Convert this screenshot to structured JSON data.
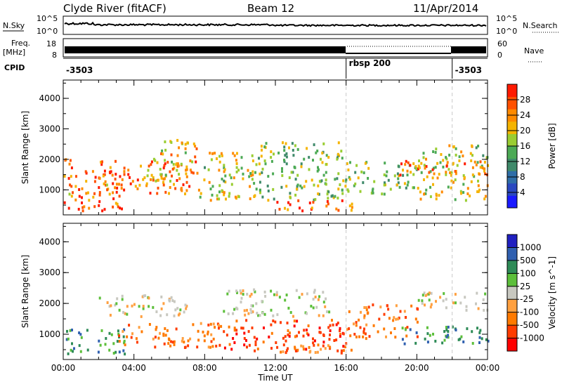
{
  "header": {
    "station": "Clyde River (fitACF)",
    "beam": "Beam 12",
    "date": "11/Apr/2014"
  },
  "strip": {
    "nsky_label": "N.Sky",
    "nsky_ticks": [
      "10^5",
      "10^0"
    ],
    "nsearch_label": "N.Search",
    "freq_label": "Freq.",
    "freq_unit": "[MHz]",
    "freq_ticks": [
      "18",
      "8"
    ],
    "nave_ticks": [
      "60",
      "0"
    ],
    "nave_label": "Nave",
    "cpid_label": "CPID",
    "cpid_segments": [
      {
        "label": "-3503",
        "start": 0,
        "end": 16
      },
      {
        "label": "rbsp 200",
        "start": 16,
        "end": 22
      },
      {
        "label": "-3503",
        "start": 22,
        "end": 24
      }
    ]
  },
  "chart_data": [
    {
      "type": "heatmap",
      "quantity": "Power",
      "x_ticks": [
        "00:00",
        "04:00",
        "08:00",
        "12:00",
        "16:00",
        "20:00",
        "00:00"
      ],
      "xlim": [
        0,
        24
      ],
      "ylabel": "Slant Range [km]",
      "y_ticks": [
        "1000",
        "2000",
        "3000",
        "4000"
      ],
      "ylim": [
        180,
        4600
      ],
      "colorbar": {
        "label": "Power [dB]",
        "ticks": [
          "4",
          "8",
          "12",
          "16",
          "20",
          "24",
          "28"
        ],
        "range": [
          0,
          32
        ],
        "colors": [
          "#1a1aff",
          "#2a48c0",
          "#2f6ea8",
          "#3f8a6a",
          "#4caa55",
          "#9acd32",
          "#f5b400",
          "#ff8a00",
          "#ff5000",
          "#ff1a00"
        ]
      },
      "regions": [
        {
          "t0": 0.0,
          "t1": 0.6,
          "r0": 350,
          "r1": 2050,
          "level": 0.8
        },
        {
          "t0": 0.6,
          "t1": 3.5,
          "r0": 350,
          "r1": 1700,
          "level": 0.9
        },
        {
          "t0": 2.0,
          "t1": 7.5,
          "r0": 900,
          "r1": 2000,
          "level": 0.8
        },
        {
          "t0": 5.0,
          "t1": 7.5,
          "r0": 1300,
          "r1": 2700,
          "level": 0.7
        },
        {
          "t0": 7.5,
          "t1": 11.0,
          "r0": 700,
          "r1": 2300,
          "level": 0.6
        },
        {
          "t0": 11.0,
          "t1": 16.0,
          "r0": 700,
          "r1": 2600,
          "level": 0.5
        },
        {
          "t0": 12.0,
          "t1": 16.5,
          "r0": 350,
          "r1": 700,
          "level": 0.85
        },
        {
          "t0": 16.0,
          "t1": 20.0,
          "r0": 900,
          "r1": 2000,
          "level": 0.5
        },
        {
          "t0": 20.0,
          "t1": 24.0,
          "r0": 700,
          "r1": 2500,
          "level": 0.6
        },
        {
          "t0": 19.0,
          "t1": 24.0,
          "r0": 1500,
          "r1": 2000,
          "level": 0.85
        }
      ]
    },
    {
      "type": "heatmap",
      "quantity": "Velocity",
      "x_ticks": [
        "00:00",
        "04:00",
        "08:00",
        "12:00",
        "16:00",
        "20:00",
        "00:00"
      ],
      "xlim": [
        0,
        24
      ],
      "xlabel": "Time UT",
      "ylabel": "Slant Range [km]",
      "y_ticks": [
        "1000",
        "2000",
        "3000",
        "4000"
      ],
      "ylim": [
        180,
        4600
      ],
      "colorbar": {
        "label": "Velocity [m s^-1]",
        "ticks": [
          "1000",
          "500",
          "100",
          "25",
          "-25",
          "-100",
          "-500",
          "-1000"
        ],
        "colors": [
          "#2020c0",
          "#3060b0",
          "#2e8b57",
          "#5cbf3a",
          "#c8c8c0",
          "#ffa040",
          "#ff7a00",
          "#ff3c00",
          "#ff0000"
        ]
      },
      "regions": [
        {
          "t0": 0.0,
          "t1": 3.5,
          "r0": 400,
          "r1": 1200,
          "level": 2
        },
        {
          "t0": 2.0,
          "t1": 7.0,
          "r0": 1600,
          "r1": 2300,
          "level": 4
        },
        {
          "t0": 3.0,
          "t1": 9.0,
          "r0": 600,
          "r1": 1400,
          "level": 6
        },
        {
          "t0": 9.0,
          "t1": 16.0,
          "r0": 500,
          "r1": 1500,
          "level": 7
        },
        {
          "t0": 9.0,
          "t1": 15.0,
          "r0": 1600,
          "r1": 2500,
          "level": 4
        },
        {
          "t0": 12.0,
          "t1": 16.5,
          "r0": 350,
          "r1": 700,
          "level": 6
        },
        {
          "t0": 16.0,
          "t1": 20.0,
          "r0": 900,
          "r1": 2000,
          "level": 6
        },
        {
          "t0": 19.0,
          "t1": 24.0,
          "r0": 700,
          "r1": 1300,
          "level": 2
        },
        {
          "t0": 20.0,
          "t1": 24.0,
          "r0": 1800,
          "r1": 2400,
          "level": 4
        }
      ]
    }
  ]
}
